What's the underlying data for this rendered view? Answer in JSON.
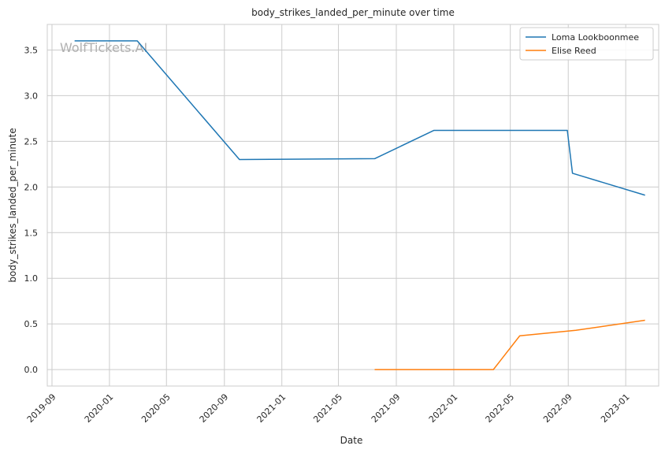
{
  "chart_data": {
    "type": "line",
    "title": "body_strikes_landed_per_minute over time",
    "xlabel": "Date",
    "ylabel": "body_strikes_landed_per_minute",
    "x_type": "date",
    "xlim": [
      "2019-08-22",
      "2023-03-12"
    ],
    "ylim": [
      -0.18,
      3.78
    ],
    "x_ticks": [
      "2019-09-01",
      "2020-01-01",
      "2020-05-01",
      "2020-09-01",
      "2021-01-01",
      "2021-05-01",
      "2021-09-01",
      "2022-01-01",
      "2022-05-01",
      "2022-09-01",
      "2023-01-01"
    ],
    "x_tick_labels": [
      "2019-09",
      "2020-01",
      "2020-05",
      "2020-09",
      "2021-01",
      "2021-05",
      "2021-09",
      "2022-01",
      "2022-05",
      "2022-09",
      "2023-01"
    ],
    "y_ticks": [
      0.0,
      0.5,
      1.0,
      1.5,
      2.0,
      2.5,
      3.0,
      3.5
    ],
    "y_tick_labels": [
      "0.0",
      "0.5",
      "1.0",
      "1.5",
      "2.0",
      "2.5",
      "3.0",
      "3.5"
    ],
    "grid": true,
    "legend_position": "top-right",
    "series": [
      {
        "name": "Loma Lookboonmee",
        "color": "#1f77b4",
        "points": [
          {
            "x": "2019-10-19",
            "y": 3.6
          },
          {
            "x": "2020-02-29",
            "y": 3.6
          },
          {
            "x": "2020-10-03",
            "y": 2.3
          },
          {
            "x": "2021-07-17",
            "y": 2.31
          },
          {
            "x": "2021-11-20",
            "y": 2.62
          },
          {
            "x": "2022-08-30",
            "y": 2.62
          },
          {
            "x": "2022-09-10",
            "y": 2.15
          },
          {
            "x": "2023-02-11",
            "y": 1.91
          }
        ]
      },
      {
        "name": "Elise Reed",
        "color": "#ff7f0e",
        "points": [
          {
            "x": "2021-07-17",
            "y": 0.0
          },
          {
            "x": "2022-03-26",
            "y": 0.0
          },
          {
            "x": "2022-05-21",
            "y": 0.37
          },
          {
            "x": "2022-09-17",
            "y": 0.43
          },
          {
            "x": "2023-02-11",
            "y": 0.54
          }
        ]
      }
    ],
    "watermark": "WolfTickets.AI"
  }
}
